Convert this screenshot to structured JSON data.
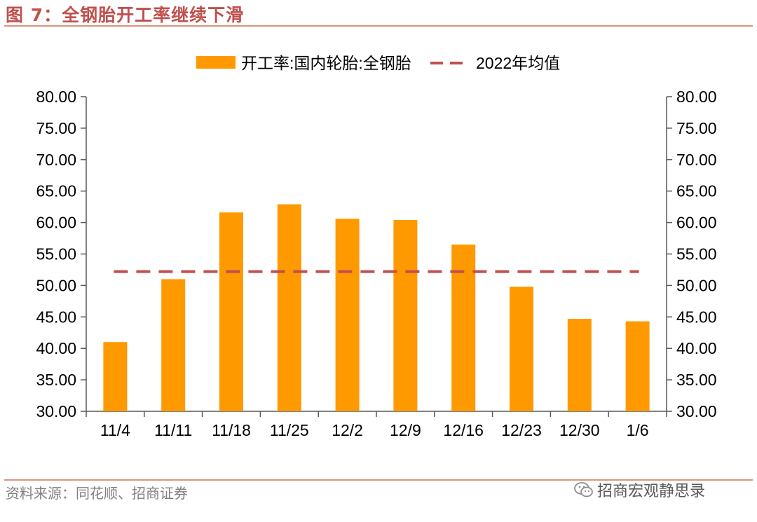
{
  "header": {
    "title": "图 7：全钢胎开工率继续下滑"
  },
  "footer": {
    "source": "资料来源：同花顺、招商证券",
    "watermark": "招商宏观静思录"
  },
  "chart_data": {
    "type": "bar",
    "title": "",
    "categories": [
      "11/4",
      "11/11",
      "11/18",
      "11/25",
      "12/2",
      "12/9",
      "12/16",
      "12/23",
      "12/30",
      "1/6"
    ],
    "series": [
      {
        "name": "开工率:国内轮胎:全钢胎",
        "type": "bar",
        "color": "#ff9900",
        "values": [
          41.0,
          51.0,
          61.6,
          62.9,
          60.6,
          60.4,
          56.5,
          49.8,
          44.7,
          44.3
        ]
      },
      {
        "name": "2022年均值",
        "type": "line",
        "style": "dashed",
        "color": "#c0504d",
        "values": [
          52.2,
          52.2,
          52.2,
          52.2,
          52.2,
          52.2,
          52.2,
          52.2,
          52.2,
          52.2
        ]
      }
    ],
    "ylim": [
      30,
      80
    ],
    "yticks": [
      "30.00",
      "35.00",
      "40.00",
      "45.00",
      "50.00",
      "55.00",
      "60.00",
      "65.00",
      "70.00",
      "75.00",
      "80.00"
    ],
    "y2ticks": [
      "30.00",
      "35.00",
      "40.00",
      "45.00",
      "50.00",
      "55.00",
      "60.00",
      "65.00",
      "70.00",
      "75.00",
      "80.00"
    ],
    "xlabel": "",
    "ylabel": "",
    "legend": "top-center",
    "grid": false
  }
}
